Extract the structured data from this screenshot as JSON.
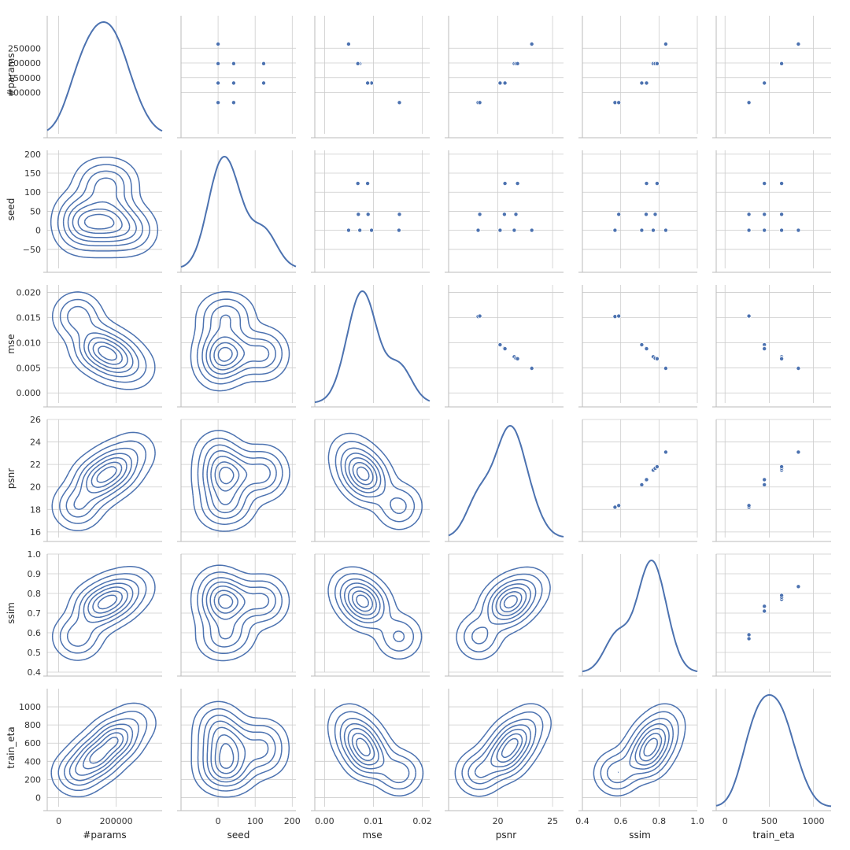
{
  "figure_type": "pairplot",
  "colors": {
    "primary": "#4c72b0",
    "grid": "#cccccc",
    "spine": "#bbbbbb"
  },
  "chart_data": {
    "type": "scatter",
    "variables": [
      "#params",
      "seed",
      "mse",
      "psnr",
      "ssim",
      "train_eta"
    ],
    "upper_triangle": "scatter",
    "diagonal": "kde",
    "lower_triangle": "kde contours",
    "grid": true,
    "axes": [
      {
        "name": "#params",
        "range": [
          -40000,
          360000
        ],
        "ticks": [
          100000,
          150000,
          200000,
          250000
        ],
        "tick_labels": [
          "100000",
          "150000",
          "200000",
          "250000"
        ],
        "bottom_ticks": [
          0,
          200000
        ],
        "bottom_tick_labels": [
          "0",
          "200000"
        ]
      },
      {
        "name": "seed",
        "range": [
          -100,
          210
        ],
        "ticks": [
          -50,
          0,
          50,
          100,
          150,
          200
        ],
        "tick_labels": [
          "−50",
          "0",
          "50",
          "100",
          "150",
          "200"
        ],
        "bottom_ticks": [
          0,
          100,
          200
        ],
        "bottom_tick_labels": [
          "0",
          "100",
          "200"
        ]
      },
      {
        "name": "mse",
        "range": [
          -0.002,
          0.0215
        ],
        "ticks": [
          0.0,
          0.005,
          0.01,
          0.015,
          0.02
        ],
        "tick_labels": [
          "0.000",
          "0.005",
          "0.010",
          "0.015",
          "0.020"
        ],
        "bottom_ticks": [
          0.0,
          0.01,
          0.02
        ],
        "bottom_tick_labels": [
          "0.00",
          "0.01",
          "0.02"
        ]
      },
      {
        "name": "psnr",
        "range": [
          15.5,
          26
        ],
        "ticks": [
          16,
          18,
          20,
          22,
          24,
          26
        ],
        "tick_labels": [
          "16",
          "18",
          "20",
          "22",
          "24",
          "26"
        ],
        "bottom_ticks": [
          20,
          25
        ],
        "bottom_tick_labels": [
          "20",
          "25"
        ]
      },
      {
        "name": "ssim",
        "range": [
          0.4,
          1.0
        ],
        "ticks": [
          0.4,
          0.5,
          0.6,
          0.7,
          0.8,
          0.9,
          1.0
        ],
        "tick_labels": [
          "0.4",
          "0.5",
          "0.6",
          "0.7",
          "0.8",
          "0.9",
          "1.0"
        ],
        "bottom_ticks": [
          0.4,
          0.6,
          0.8,
          1.0
        ],
        "bottom_tick_labels": [
          "0.4",
          "0.6",
          "0.8",
          "1.0"
        ]
      },
      {
        "name": "train_eta",
        "range": [
          -100,
          1200
        ],
        "ticks": [
          0,
          200,
          400,
          600,
          800,
          1000
        ],
        "tick_labels": [
          "0",
          "200",
          "400",
          "600",
          "800",
          "1000"
        ],
        "bottom_ticks": [
          0,
          500,
          1000
        ],
        "bottom_tick_labels": [
          "0",
          "500",
          "1000"
        ]
      }
    ],
    "points": [
      {
        "#params": 66000,
        "seed": 0,
        "mse": 0.0152,
        "psnr": 18.2,
        "ssim": 0.57,
        "train_eta": 270
      },
      {
        "#params": 66000,
        "seed": 42,
        "mse": 0.0153,
        "psnr": 18.35,
        "ssim": 0.59,
        "train_eta": 270
      },
      {
        "#params": 132000,
        "seed": 0,
        "mse": 0.0096,
        "psnr": 20.2,
        "ssim": 0.71,
        "train_eta": 445
      },
      {
        "#params": 132000,
        "seed": 42,
        "mse": 0.0089,
        "psnr": 20.6,
        "ssim": 0.733,
        "train_eta": 445
      },
      {
        "#params": 132000,
        "seed": 123,
        "mse": 0.0088,
        "psnr": 20.65,
        "ssim": 0.735,
        "train_eta": 445
      },
      {
        "#params": 198000,
        "seed": 0,
        "mse": 0.0072,
        "psnr": 21.5,
        "ssim": 0.77,
        "train_eta": 640
      },
      {
        "#params": 198000,
        "seed": 42,
        "mse": 0.0069,
        "psnr": 21.65,
        "ssim": 0.78,
        "train_eta": 640
      },
      {
        "#params": 198000,
        "seed": 123,
        "mse": 0.0068,
        "psnr": 21.8,
        "ssim": 0.79,
        "train_eta": 640
      },
      {
        "#params": 264000,
        "seed": 0,
        "mse": 0.0049,
        "psnr": 23.1,
        "ssim": 0.835,
        "train_eta": 830
      }
    ],
    "kde_diagonal": [
      {
        "variable": "#params",
        "peaks": [
          130000
        ],
        "shape": "broad flat-topped"
      },
      {
        "variable": "seed",
        "peaks": [
          15,
          120
        ],
        "shape": "bimodal, left peak higher"
      },
      {
        "variable": "mse",
        "peaks": [
          0.0075,
          0.0155
        ],
        "shape": "bimodal, left peak higher"
      },
      {
        "variable": "psnr",
        "peaks": [
          18.3,
          21.3
        ],
        "shape": "bimodal, right peak higher"
      },
      {
        "variable": "ssim",
        "peaks": [
          0.58,
          0.76
        ],
        "shape": "bimodal, right peak higher"
      },
      {
        "variable": "train_eta",
        "peaks": [
          460
        ],
        "shape": "broad flat-topped"
      }
    ]
  }
}
